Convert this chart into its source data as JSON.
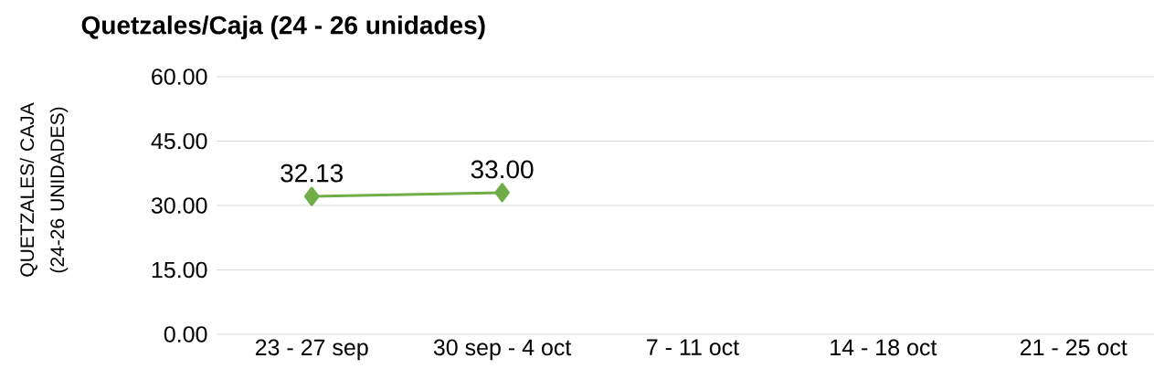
{
  "chart_data": {
    "type": "line",
    "title": "Quetzales/Caja (24 - 26 unidades)",
    "ylabel": "QUETZALES/ CAJA  (24-26 UNIDADES)",
    "categories": [
      "23 - 27 sep",
      "30 sep - 4 oct",
      "7 - 11 oct",
      "14 - 18 oct",
      "21 - 25 oct"
    ],
    "series": [
      {
        "color": "#70ad47",
        "values": [
          32.13,
          33,
          null,
          null,
          null
        ],
        "value_labels": [
          "32.13",
          "33.00",
          null,
          null,
          null
        ]
      }
    ],
    "ylim": [
      0,
      60
    ],
    "yticks": [
      {
        "value": 0,
        "label": "0.00"
      },
      {
        "value": 15,
        "label": "15.00"
      },
      {
        "value": 30,
        "label": "30.00"
      },
      {
        "value": 45,
        "label": "45.00"
      },
      {
        "value": 60,
        "label": "60.00"
      }
    ],
    "grid": "y",
    "marker": "diamond",
    "line_style": "solid"
  }
}
